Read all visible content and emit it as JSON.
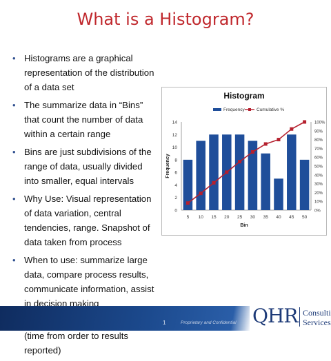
{
  "slide": {
    "title": "What is a Histogram?",
    "bullets": [
      "Histograms are a graphical representation of the distribution of a data set",
      "The summarize data in “Bins” that count the number of data within a certain range",
      "Bins are just subdivisions of the range of data, usually divided into smaller, equal intervals",
      "Why Use: Visual representation of data variation, central tendencies, range. Snapshot of data taken from process",
      "When to use: summarize large data, compare process results, communicate information, assist in decision making",
      "Example: Emergent lab results (time from order to results reported)"
    ],
    "bullet_symbol": "•"
  },
  "footer": {
    "page_number": "1",
    "confidential": "Proprietary and Confidential",
    "logo_mark": "QHR",
    "logo_line1": "Consulting",
    "logo_line2": "Services"
  },
  "colors": {
    "title": "#c0282d",
    "bar": "#1f4e9a",
    "cumulative": "#b5202e",
    "footer_band": "#1c4a8e"
  },
  "chart_data": {
    "type": "bar",
    "title": "Histogram",
    "xlabel": "Bin",
    "ylabel": "Frequency",
    "categories": [
      "5",
      "10",
      "15",
      "20",
      "25",
      "30",
      "35",
      "40",
      "45",
      "50"
    ],
    "series": [
      {
        "name": "Frequency",
        "type": "bar",
        "axis": "left",
        "values": [
          8,
          11,
          12,
          12,
          12,
          11,
          9,
          5,
          12,
          8
        ]
      },
      {
        "name": "Cumulative %",
        "type": "line",
        "axis": "right",
        "values": [
          8,
          19,
          31,
          43,
          55,
          66,
          75,
          80,
          92,
          100
        ]
      }
    ],
    "ylim": [
      0,
      14
    ],
    "yticks": [
      "0",
      "2",
      "4",
      "6",
      "8",
      "10",
      "12",
      "14"
    ],
    "y2lim": [
      0,
      100
    ],
    "y2ticks": [
      "0%",
      "10%",
      "20%",
      "30%",
      "40%",
      "50%",
      "60%",
      "70%",
      "80%",
      "90%",
      "100%"
    ],
    "legend_position": "top",
    "grid": false
  }
}
